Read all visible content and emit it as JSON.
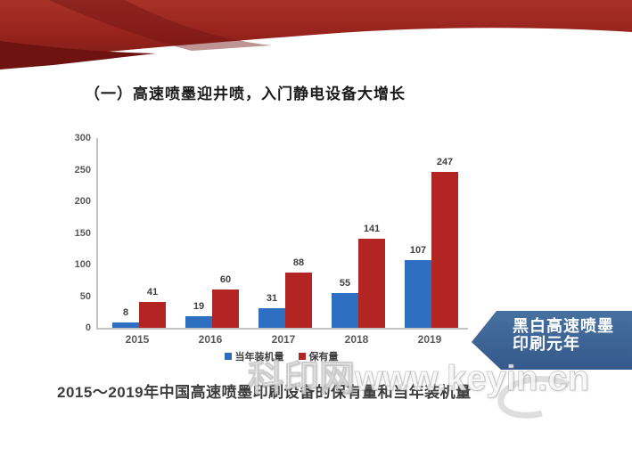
{
  "slide": {
    "title": "（一）高速喷墨迎井喷，入门静电设备大增长",
    "caption": "2015～2019年中国高速喷墨印刷设备的保有量和当年装机量",
    "watermark": "科印网www.keyin.cn",
    "callout": {
      "line1": "黑白高速喷墨",
      "line2": "印刷元年"
    }
  },
  "colors": {
    "ribbon_red_dark": "#7e1b16",
    "ribbon_red_light": "#a83228",
    "bar_blue": "#2f6fc2",
    "bar_red": "#b22522",
    "callout_blue": "#3a6397",
    "axis_gray": "#c3c3c3",
    "label_gray": "#595959"
  },
  "chart_data": {
    "type": "bar",
    "categories": [
      "2015",
      "2016",
      "2017",
      "2018",
      "2019"
    ],
    "series": [
      {
        "name": "当年装机量",
        "color": "#2f6fc2",
        "values": [
          8,
          19,
          31,
          55,
          107
        ]
      },
      {
        "name": "保有量",
        "color": "#b22522",
        "values": [
          41,
          60,
          88,
          141,
          247
        ]
      }
    ],
    "title": "",
    "xlabel": "",
    "ylabel": "",
    "ylim": [
      0,
      300
    ],
    "ytick_step": 50,
    "grid": false,
    "legend_position": "bottom",
    "data_labels": true
  }
}
